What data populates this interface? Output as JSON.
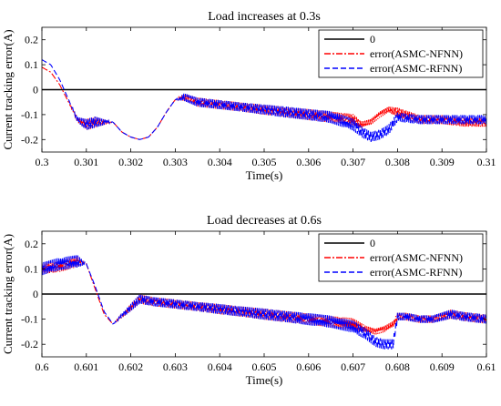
{
  "colors": {
    "zero": "#000000",
    "nfnn": "#ff0000",
    "rfnn": "#0000ff"
  },
  "shared_ylabel": "Current tracking error(A)",
  "chart_data": [
    {
      "type": "line",
      "title": "Load increases at 0.3s",
      "xlabel": "Time(s)",
      "ylabel": "Current tracking error(A)",
      "xlim": [
        0.3,
        0.31
      ],
      "ylim": [
        -0.25,
        0.25
      ],
      "x_ticks": [
        "0.3",
        "0.301",
        "0.302",
        "0.303",
        "0.304",
        "0.305",
        "0.306",
        "0.307",
        "0.308",
        "0.309",
        "0.31"
      ],
      "y_ticks": [
        "0.2",
        "0.1",
        "0",
        "-0.1",
        "-0.2"
      ],
      "legend": {
        "position": "top-right",
        "entries": [
          "0",
          "error(ASMC-NFNN)",
          "error(ASMC-RFNN)"
        ]
      },
      "series": [
        {
          "name": "0",
          "style": "solid",
          "x": [
            0.3,
            0.31
          ],
          "y": [
            0,
            0
          ]
        },
        {
          "name": "error(ASMC-NFNN)",
          "style": "dash-dot",
          "x": [
            0.3,
            0.3002,
            0.3004,
            0.3006,
            0.3008,
            0.301,
            0.3012,
            0.3016,
            0.3018,
            0.302,
            0.3022,
            0.3024,
            0.3026,
            0.3028,
            0.303,
            0.3032,
            0.3035,
            0.304,
            0.3045,
            0.305,
            0.3055,
            0.306,
            0.3065,
            0.307,
            0.3072,
            0.3074,
            0.3076,
            0.3078,
            0.308,
            0.3085,
            0.309,
            0.3095,
            0.31
          ],
          "y": [
            0.09,
            0.07,
            0.02,
            -0.05,
            -0.12,
            -0.14,
            -0.13,
            -0.13,
            -0.17,
            -0.19,
            -0.2,
            -0.19,
            -0.15,
            -0.09,
            -0.04,
            -0.03,
            -0.05,
            -0.06,
            -0.07,
            -0.08,
            -0.09,
            -0.1,
            -0.11,
            -0.12,
            -0.14,
            -0.13,
            -0.1,
            -0.08,
            -0.09,
            -0.12,
            -0.12,
            -0.13,
            -0.13
          ],
          "amp": [
            0,
            0,
            0,
            0,
            0.01,
            0.022,
            0.022,
            0,
            0,
            0,
            0,
            0,
            0,
            0,
            0,
            0.015,
            0.018,
            0.018,
            0.018,
            0.02,
            0.02,
            0.022,
            0.022,
            0.022,
            0.012,
            0.012,
            0.012,
            0.012,
            0.018,
            0.018,
            0.018,
            0.018,
            0.018
          ]
        },
        {
          "name": "error(ASMC-RFNN)",
          "style": "dashed",
          "x": [
            0.3,
            0.3002,
            0.3004,
            0.3006,
            0.3008,
            0.301,
            0.3012,
            0.3016,
            0.3018,
            0.302,
            0.3022,
            0.3024,
            0.3026,
            0.3028,
            0.303,
            0.3032,
            0.3035,
            0.304,
            0.3045,
            0.305,
            0.3055,
            0.306,
            0.3065,
            0.307,
            0.3072,
            0.3074,
            0.3076,
            0.3078,
            0.308,
            0.3085,
            0.309,
            0.3095,
            0.31
          ],
          "y": [
            0.12,
            0.1,
            0.04,
            -0.04,
            -0.12,
            -0.14,
            -0.13,
            -0.13,
            -0.17,
            -0.19,
            -0.2,
            -0.19,
            -0.15,
            -0.09,
            -0.04,
            -0.03,
            -0.05,
            -0.06,
            -0.07,
            -0.08,
            -0.09,
            -0.1,
            -0.11,
            -0.14,
            -0.17,
            -0.19,
            -0.18,
            -0.16,
            -0.11,
            -0.12,
            -0.12,
            -0.12,
            -0.12
          ],
          "amp": [
            0,
            0,
            0,
            0,
            0.01,
            0.022,
            0.022,
            0,
            0,
            0,
            0,
            0,
            0,
            0,
            0,
            0.015,
            0.018,
            0.018,
            0.018,
            0.02,
            0.022,
            0.022,
            0.024,
            0.024,
            0.022,
            0.02,
            0.02,
            0.02,
            0.018,
            0.018,
            0.018,
            0.018,
            0.018
          ]
        }
      ]
    },
    {
      "type": "line",
      "title": "Load decreases at 0.6s",
      "xlabel": "Time(s)",
      "ylabel": "Current tracking error(A)",
      "xlim": [
        0.6,
        0.61
      ],
      "ylim": [
        -0.25,
        0.25
      ],
      "x_ticks": [
        "0.6",
        "0.601",
        "0.602",
        "0.603",
        "0.604",
        "0.605",
        "0.606",
        "0.607",
        "0.608",
        "0.609",
        "0.61"
      ],
      "y_ticks": [
        "0.2",
        "0.1",
        "0",
        "-0.1",
        "-0.2"
      ],
      "legend": {
        "position": "top-right",
        "entries": [
          "0",
          "error(ASMC-NFNN)",
          "error(ASMC-RFNN)"
        ]
      },
      "series": [
        {
          "name": "0",
          "style": "solid",
          "x": [
            0.6,
            0.61
          ],
          "y": [
            0,
            0
          ]
        },
        {
          "name": "error(ASMC-NFNN)",
          "style": "dash-dot",
          "x": [
            0.6,
            0.6004,
            0.6008,
            0.601,
            0.6012,
            0.6014,
            0.6016,
            0.6019,
            0.6022,
            0.6025,
            0.603,
            0.6035,
            0.604,
            0.6045,
            0.605,
            0.6055,
            0.606,
            0.6065,
            0.607,
            0.6073,
            0.6075,
            0.6077,
            0.6079,
            0.608,
            0.6082,
            0.6085,
            0.6088,
            0.6092,
            0.6095,
            0.61
          ],
          "y": [
            0.1,
            0.11,
            0.13,
            0.12,
            0.02,
            -0.08,
            -0.12,
            -0.07,
            -0.02,
            -0.03,
            -0.04,
            -0.05,
            -0.06,
            -0.07,
            -0.08,
            -0.09,
            -0.1,
            -0.11,
            -0.12,
            -0.14,
            -0.15,
            -0.14,
            -0.12,
            -0.09,
            -0.09,
            -0.1,
            -0.1,
            -0.08,
            -0.09,
            -0.1
          ],
          "amp": [
            0.02,
            0.022,
            0.022,
            0,
            0,
            0,
            0,
            0.012,
            0.018,
            0.018,
            0.018,
            0.018,
            0.02,
            0.02,
            0.022,
            0.022,
            0.022,
            0.022,
            0.024,
            0.012,
            0.012,
            0.012,
            0.012,
            0.015,
            0.015,
            0.015,
            0.015,
            0.018,
            0.018,
            0.018
          ]
        },
        {
          "name": "error(ASMC-RFNN)",
          "style": "dashed",
          "x": [
            0.6,
            0.6004,
            0.6008,
            0.601,
            0.6012,
            0.6014,
            0.6016,
            0.6019,
            0.6022,
            0.6025,
            0.603,
            0.6035,
            0.604,
            0.6045,
            0.605,
            0.6055,
            0.606,
            0.6065,
            0.607,
            0.6073,
            0.6075,
            0.6077,
            0.6079,
            0.608,
            0.6082,
            0.6085,
            0.6088,
            0.6092,
            0.6095,
            0.61
          ],
          "y": [
            0.1,
            0.12,
            0.13,
            0.12,
            0.03,
            -0.07,
            -0.12,
            -0.07,
            -0.02,
            -0.03,
            -0.04,
            -0.05,
            -0.06,
            -0.07,
            -0.08,
            -0.09,
            -0.1,
            -0.11,
            -0.13,
            -0.16,
            -0.19,
            -0.2,
            -0.2,
            -0.09,
            -0.09,
            -0.1,
            -0.1,
            -0.08,
            -0.09,
            -0.1
          ],
          "amp": [
            0.025,
            0.025,
            0.025,
            0,
            0,
            0,
            0,
            0.012,
            0.018,
            0.018,
            0.018,
            0.018,
            0.02,
            0.02,
            0.022,
            0.022,
            0.024,
            0.024,
            0.024,
            0.022,
            0.02,
            0.02,
            0.02,
            0.015,
            0.015,
            0.015,
            0.015,
            0.018,
            0.018,
            0.018
          ]
        }
      ]
    }
  ]
}
